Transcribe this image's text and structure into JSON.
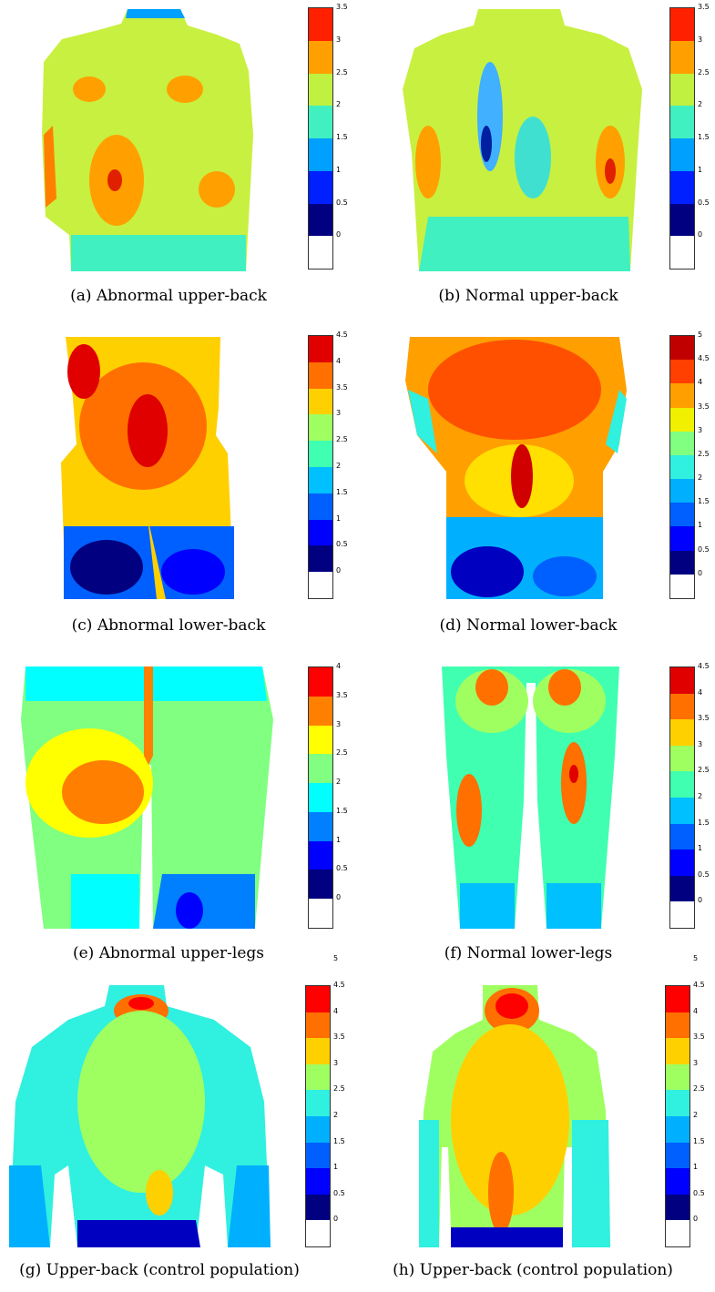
{
  "panels": [
    {
      "id": "a",
      "caption": "(a)  Abnormal upper-back",
      "ticks": [
        "0",
        "0.5",
        "1",
        "1.5",
        "2",
        "2.5",
        "3",
        "3.5"
      ],
      "colors": [
        "#ffffff",
        "#000080",
        "#0020ff",
        "#00a0ff",
        "#40f0c0",
        "#c0f040",
        "#ffa000",
        "#ff2000"
      ],
      "body": "upper"
    },
    {
      "id": "b",
      "caption": "(b)  Normal upper-back",
      "ticks": [
        "0",
        "0.5",
        "1",
        "1.5",
        "2",
        "2.5",
        "3",
        "3.5"
      ],
      "colors": [
        "#ffffff",
        "#000080",
        "#0020ff",
        "#00a0ff",
        "#40f0c0",
        "#c0f040",
        "#ffa000",
        "#ff2000"
      ],
      "body": "upper"
    },
    {
      "id": "c",
      "caption": "(c)  Abnormal lower-back",
      "ticks": [
        "0",
        "0.5",
        "1",
        "1.5",
        "2",
        "2.5",
        "3",
        "3.5",
        "4",
        "4.5"
      ],
      "colors": [
        "#ffffff",
        "#000080",
        "#0000ff",
        "#0060ff",
        "#00c0ff",
        "#40ffb0",
        "#a0ff60",
        "#ffd000",
        "#ff7000",
        "#e00000"
      ],
      "body": "lower"
    },
    {
      "id": "d",
      "caption": "(d)  Normal lower-back",
      "ticks": [
        "0",
        "0.5",
        "1",
        "1.5",
        "2",
        "2.5",
        "3",
        "3.5",
        "4",
        "4.5",
        "5"
      ],
      "colors": [
        "#ffffff",
        "#000080",
        "#0000ff",
        "#0060ff",
        "#00b0ff",
        "#30f0e0",
        "#80ff80",
        "#f0f000",
        "#ffa000",
        "#ff4000",
        "#c00000"
      ],
      "body": "lower"
    },
    {
      "id": "e",
      "caption": "(e)  Abnormal upper-legs",
      "ticks": [
        "0",
        "0.5",
        "1",
        "1.5",
        "2",
        "2.5",
        "3",
        "3.5",
        "4"
      ],
      "colors": [
        "#ffffff",
        "#000080",
        "#0000ff",
        "#0080ff",
        "#00ffff",
        "#80ff80",
        "#ffff00",
        "#ff8000",
        "#ff0000"
      ],
      "body": "ulegs"
    },
    {
      "id": "f",
      "caption": "(f)  Normal lower-legs",
      "ticks": [
        "0",
        "0.5",
        "1",
        "1.5",
        "2",
        "2.5",
        "3",
        "3.5",
        "4",
        "4.5"
      ],
      "colors": [
        "#ffffff",
        "#000080",
        "#0000ff",
        "#0060ff",
        "#00c0ff",
        "#40ffb0",
        "#a0ff60",
        "#ffd000",
        "#ff7000",
        "#e00000"
      ],
      "body": "llegs"
    },
    {
      "id": "g",
      "caption": "(g)  Upper-back (control population)",
      "ticks": [
        "0",
        "0.5",
        "1",
        "1.5",
        "2",
        "2.5",
        "3",
        "3.5",
        "4",
        "4.5",
        "5"
      ],
      "colors": [
        "#ffffff",
        "#000080",
        "#0000ff",
        "#0060ff",
        "#00b0ff",
        "#30f0e0",
        "#a0ff60",
        "#ffd000",
        "#ff7000",
        "#ff0000"
      ],
      "body": "upper"
    },
    {
      "id": "h",
      "caption": "(h)  Upper-back (control population)",
      "ticks": [
        "0",
        "0.5",
        "1",
        "1.5",
        "2",
        "2.5",
        "3",
        "3.5",
        "4",
        "4.5",
        "5"
      ],
      "colors": [
        "#ffffff",
        "#000080",
        "#0000ff",
        "#0060ff",
        "#00b0ff",
        "#30f0e0",
        "#a0ff60",
        "#ffd000",
        "#ff7000",
        "#ff0000"
      ],
      "body": "upper"
    }
  ]
}
